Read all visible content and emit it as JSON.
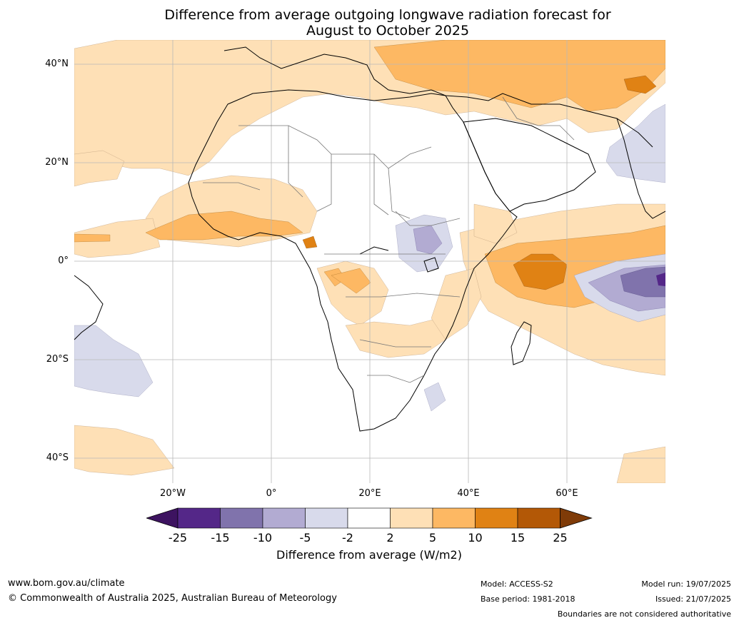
{
  "title": {
    "line1": "Difference from average outgoing longwave radiation forecast for",
    "line2": "August to October 2025"
  },
  "map": {
    "lat_labels": [
      "40°N",
      "20°N",
      "0°",
      "20°S",
      "40°S"
    ],
    "lon_labels": [
      "20°W",
      "0°",
      "20°E",
      "40°E",
      "60°E"
    ],
    "extent": {
      "lon": [
        -40,
        80
      ],
      "lat": [
        -45,
        45
      ]
    },
    "grid": true
  },
  "colorbar": {
    "ticks": [
      "-25",
      "-15",
      "-10",
      "-5",
      "-2",
      "2",
      "5",
      "10",
      "15",
      "25"
    ],
    "colors": [
      "#3d1360",
      "#542788",
      "#8073ac",
      "#b2abd2",
      "#d8daeb",
      "#ffffff",
      "#fee0b6",
      "#fdb863",
      "#e08214",
      "#b35806",
      "#7f3b08"
    ],
    "label": "Difference from average (W/m2)"
  },
  "footer": {
    "website": "www.bom.gov.au/climate",
    "copyright": "© Commonwealth of Australia 2025, Australian Bureau of Meteorology",
    "model": "Model: ACCESS-S2",
    "base_period": "Base period: 1981-2018",
    "model_run": "Model run: 19/07/2025",
    "issued": "Issued: 21/07/2025",
    "disclaimer": "Boundaries are not considered authoritative"
  }
}
